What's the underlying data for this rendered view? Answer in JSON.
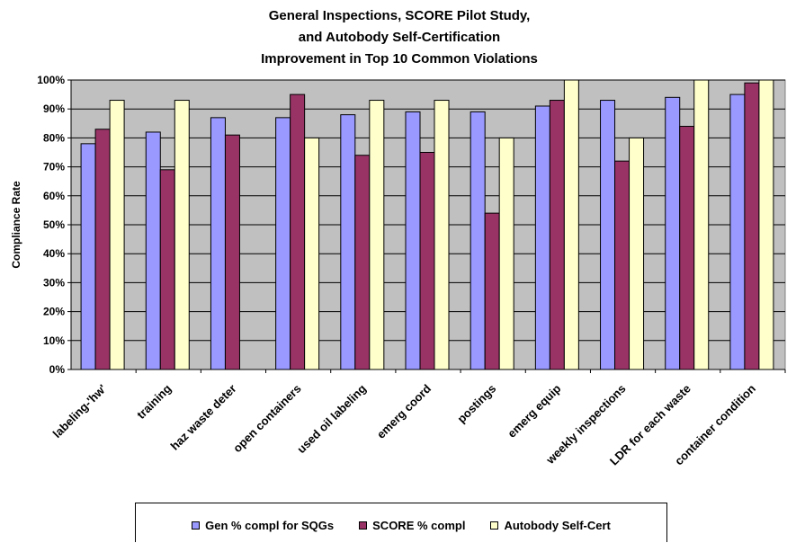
{
  "chart_data": {
    "type": "bar",
    "title": [
      "General Inspections, SCORE Pilot Study,",
      "and Autobody Self-Certification",
      "Improvement in Top 10 Common Violations"
    ],
    "xlabel": "",
    "ylabel": "Compliance Rate",
    "ylim": [
      0,
      100
    ],
    "yticks": [
      "0%",
      "10%",
      "20%",
      "30%",
      "40%",
      "50%",
      "60%",
      "70%",
      "80%",
      "90%",
      "100%"
    ],
    "categories": [
      "labeling-'hw'",
      "training",
      "haz waste deter",
      "open containers",
      "used oil labeling",
      "emerg coord",
      "postings",
      "emerg equip",
      "weekly inspections",
      "LDR for each waste",
      "container condition"
    ],
    "series": [
      {
        "name": "Gen % compl for SQGs",
        "color": "#9999ff",
        "values": [
          78,
          82,
          87,
          87,
          88,
          89,
          89,
          91,
          93,
          94,
          95
        ]
      },
      {
        "name": "SCORE  % compl",
        "color": "#993366",
        "values": [
          83,
          69,
          81,
          95,
          74,
          75,
          54,
          93,
          72,
          84,
          99
        ]
      },
      {
        "name": "Autobody Self-Cert",
        "color": "#ffffcc",
        "values": [
          93,
          93,
          null,
          80,
          93,
          93,
          80,
          100,
          80,
          100,
          100
        ]
      }
    ],
    "plot_background": "#c0c0c0",
    "grid": true,
    "legend_position": "bottom"
  }
}
